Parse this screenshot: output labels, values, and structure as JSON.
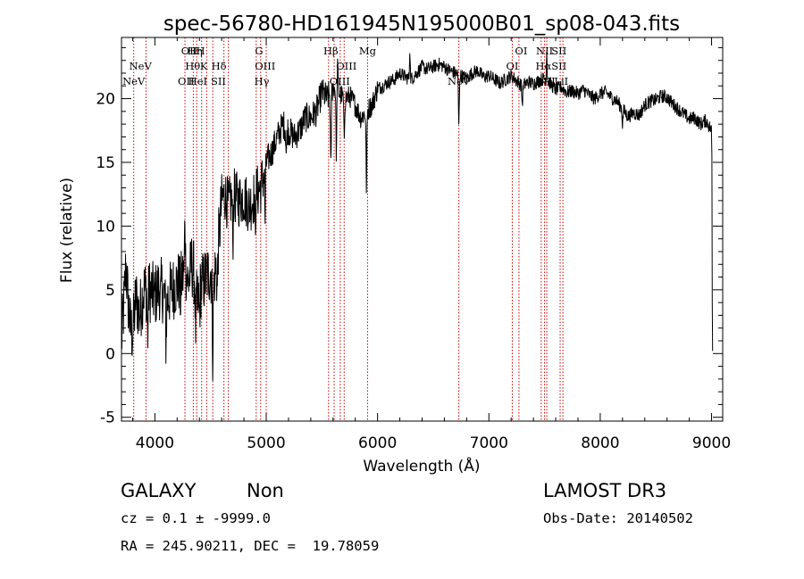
{
  "chart_data": {
    "type": "line",
    "title": "spec-56780-HD161945N195000B01_sp08-043.fits",
    "xlabel": "Wavelength (Å)",
    "ylabel": "Flux (relative)",
    "xlim": [
      3700,
      9100
    ],
    "ylim": [
      -5.3,
      24.8
    ],
    "xticks": [
      4000,
      5000,
      6000,
      7000,
      8000,
      9000
    ],
    "yticks": [
      -5,
      0,
      5,
      10,
      15,
      20
    ],
    "grid": false,
    "line_color": "#000000",
    "marker_color": "#cc0000",
    "spectrum_anchors": [
      [
        3700,
        1
      ],
      [
        3720,
        3.5
      ],
      [
        3740,
        7
      ],
      [
        3760,
        4
      ],
      [
        3780,
        2
      ],
      [
        3800,
        1.5
      ],
      [
        3830,
        4.5
      ],
      [
        3860,
        3
      ],
      [
        3900,
        5
      ],
      [
        3950,
        5
      ],
      [
        4000,
        4.5
      ],
      [
        4050,
        5.5
      ],
      [
        4100,
        4
      ],
      [
        4150,
        5
      ],
      [
        4200,
        5.5
      ],
      [
        4250,
        6
      ],
      [
        4280,
        6.5
      ],
      [
        4300,
        5.5
      ],
      [
        4330,
        7
      ],
      [
        4360,
        6
      ],
      [
        4380,
        3.5
      ],
      [
        4400,
        5
      ],
      [
        4430,
        5.5
      ],
      [
        4460,
        6
      ],
      [
        4500,
        6.5
      ],
      [
        4520,
        5
      ],
      [
        4550,
        7
      ],
      [
        4580,
        9.5
      ],
      [
        4600,
        12
      ],
      [
        4630,
        12.5
      ],
      [
        4660,
        11.5
      ],
      [
        4700,
        12.5
      ],
      [
        4750,
        12
      ],
      [
        4800,
        12.3
      ],
      [
        4850,
        11.5
      ],
      [
        4900,
        12.5
      ],
      [
        4950,
        13
      ],
      [
        5000,
        15
      ],
      [
        5050,
        15.8
      ],
      [
        5100,
        17
      ],
      [
        5150,
        18
      ],
      [
        5200,
        17.5
      ],
      [
        5250,
        17
      ],
      [
        5300,
        17.5
      ],
      [
        5350,
        18.5
      ],
      [
        5400,
        18.5
      ],
      [
        5450,
        19
      ],
      [
        5500,
        20.5
      ],
      [
        5550,
        20
      ],
      [
        5600,
        21
      ],
      [
        5650,
        20.5
      ],
      [
        5700,
        20
      ],
      [
        5750,
        20.2
      ],
      [
        5800,
        19.5
      ],
      [
        5850,
        18.5
      ],
      [
        5900,
        19
      ],
      [
        5950,
        19.5
      ],
      [
        6000,
        20.8
      ],
      [
        6050,
        21
      ],
      [
        6100,
        21.3
      ],
      [
        6150,
        21.5
      ],
      [
        6200,
        22
      ],
      [
        6250,
        21.7
      ],
      [
        6300,
        21.5
      ],
      [
        6350,
        22
      ],
      [
        6400,
        22.5
      ],
      [
        6450,
        22.3
      ],
      [
        6500,
        22.5
      ],
      [
        6550,
        22.7
      ],
      [
        6600,
        22.5
      ],
      [
        6650,
        22.2
      ],
      [
        6700,
        22
      ],
      [
        6750,
        21.8
      ],
      [
        6800,
        21.6
      ],
      [
        6850,
        22
      ],
      [
        6900,
        22.2
      ],
      [
        6950,
        21.7
      ],
      [
        7000,
        21.8
      ],
      [
        7050,
        21.5
      ],
      [
        7100,
        21.2
      ],
      [
        7150,
        21.5
      ],
      [
        7200,
        21.8
      ],
      [
        7250,
        21.4
      ],
      [
        7300,
        21
      ],
      [
        7350,
        21.3
      ],
      [
        7400,
        21.2
      ],
      [
        7450,
        21.4
      ],
      [
        7500,
        21.6
      ],
      [
        7550,
        21.2
      ],
      [
        7600,
        20.7
      ],
      [
        7650,
        20.9
      ],
      [
        7700,
        20.5
      ],
      [
        7750,
        20.6
      ],
      [
        7800,
        20.4
      ],
      [
        7850,
        20.7
      ],
      [
        7900,
        20.3
      ],
      [
        7950,
        20
      ],
      [
        8000,
        20.4
      ],
      [
        8050,
        20.5
      ],
      [
        8100,
        20.1
      ],
      [
        8150,
        19.8
      ],
      [
        8200,
        19.2
      ],
      [
        8250,
        18.6
      ],
      [
        8300,
        18.9
      ],
      [
        8350,
        18.7
      ],
      [
        8400,
        19.5
      ],
      [
        8450,
        19.8
      ],
      [
        8500,
        19.9
      ],
      [
        8550,
        20.2
      ],
      [
        8600,
        20.1
      ],
      [
        8650,
        19.6
      ],
      [
        8700,
        19.2
      ],
      [
        8750,
        18.8
      ],
      [
        8800,
        18.4
      ],
      [
        8850,
        18.5
      ],
      [
        8900,
        18
      ],
      [
        8950,
        18.3
      ],
      [
        9000,
        17.5
      ]
    ],
    "absorption_features": [
      [
        3935,
        4
      ],
      [
        4050,
        1.5
      ],
      [
        4100,
        3
      ],
      [
        4230,
        1.5
      ],
      [
        4365,
        3.5
      ],
      [
        4400,
        2
      ],
      [
        4520,
        5
      ],
      [
        4560,
        3
      ],
      [
        4700,
        3.5
      ],
      [
        4900,
        2.5
      ],
      [
        4990,
        4
      ],
      [
        5180,
        2
      ],
      [
        5580,
        6.5
      ],
      [
        5630,
        5
      ],
      [
        5700,
        3
      ],
      [
        5900,
        6
      ],
      [
        6730,
        4
      ],
      [
        7300,
        1.5
      ],
      [
        8200,
        1.2
      ]
    ],
    "emission_features": [
      [
        4270,
        5
      ],
      [
        5640,
        2.5
      ],
      [
        6290,
        2.5
      ],
      [
        7520,
        2.5
      ]
    ],
    "line_markers": [
      {
        "label": "NeV",
        "x": 3870,
        "row": 1
      },
      {
        "label": "NeV",
        "x": 3810,
        "row": 2
      },
      {
        "label": "OII",
        "x": 4310,
        "row": 0
      },
      {
        "label": "Hη",
        "x": 4360,
        "row": 0
      },
      {
        "label": "H",
        "x": 4410,
        "row": 0
      },
      {
        "label": "Hθ",
        "x": 4340,
        "row": 1
      },
      {
        "label": "K",
        "x": 4440,
        "row": 1
      },
      {
        "label": "Hδ",
        "x": 4575,
        "row": 1
      },
      {
        "label": "OII",
        "x": 4280,
        "row": 2
      },
      {
        "label": "HeI",
        "x": 4385,
        "row": 2
      },
      {
        "label": "SII",
        "x": 4570,
        "row": 2
      },
      {
        "label": "G",
        "x": 4935,
        "row": 0
      },
      {
        "label": "OIII",
        "x": 4990,
        "row": 1
      },
      {
        "label": "Hγ",
        "x": 4960,
        "row": 2
      },
      {
        "label": "Hβ",
        "x": 5580,
        "row": 0
      },
      {
        "label": "Mg",
        "x": 5910,
        "row": 0
      },
      {
        "label": "OIII",
        "x": 5720,
        "row": 1
      },
      {
        "label": "OIII",
        "x": 5660,
        "row": 2
      },
      {
        "label": "NeV",
        "x": 6730,
        "row": 2
      },
      {
        "label": "OI",
        "x": 7290,
        "row": 0
      },
      {
        "label": "NII",
        "x": 7500,
        "row": 0
      },
      {
        "label": "SII",
        "x": 7630,
        "row": 0
      },
      {
        "label": "OI",
        "x": 7210,
        "row": 1
      },
      {
        "label": "Hα",
        "x": 7490,
        "row": 1
      },
      {
        "label": "SII",
        "x": 7630,
        "row": 1
      },
      {
        "label": "NII",
        "x": 7520,
        "row": 2
      },
      {
        "label": "LiI",
        "x": 7650,
        "row": 2
      }
    ],
    "marker_lines": [
      3810,
      3920,
      4270,
      4345,
      4375,
      4420,
      4465,
      4520,
      4620,
      4660,
      4910,
      4950,
      5000,
      5560,
      5610,
      5665,
      5700,
      5910,
      6730,
      7210,
      7270,
      7470,
      7500,
      7520,
      7640,
      7665
    ]
  },
  "info": {
    "object_class": "GALAXY",
    "subclass": "Non",
    "survey": "LAMOST DR3",
    "cz_line": "cz = 0.1 ± -9999.0",
    "obs_date_line": "Obs-Date: 20140502",
    "coords_line": "RA = 245.90211, DEC =  19.78059"
  }
}
